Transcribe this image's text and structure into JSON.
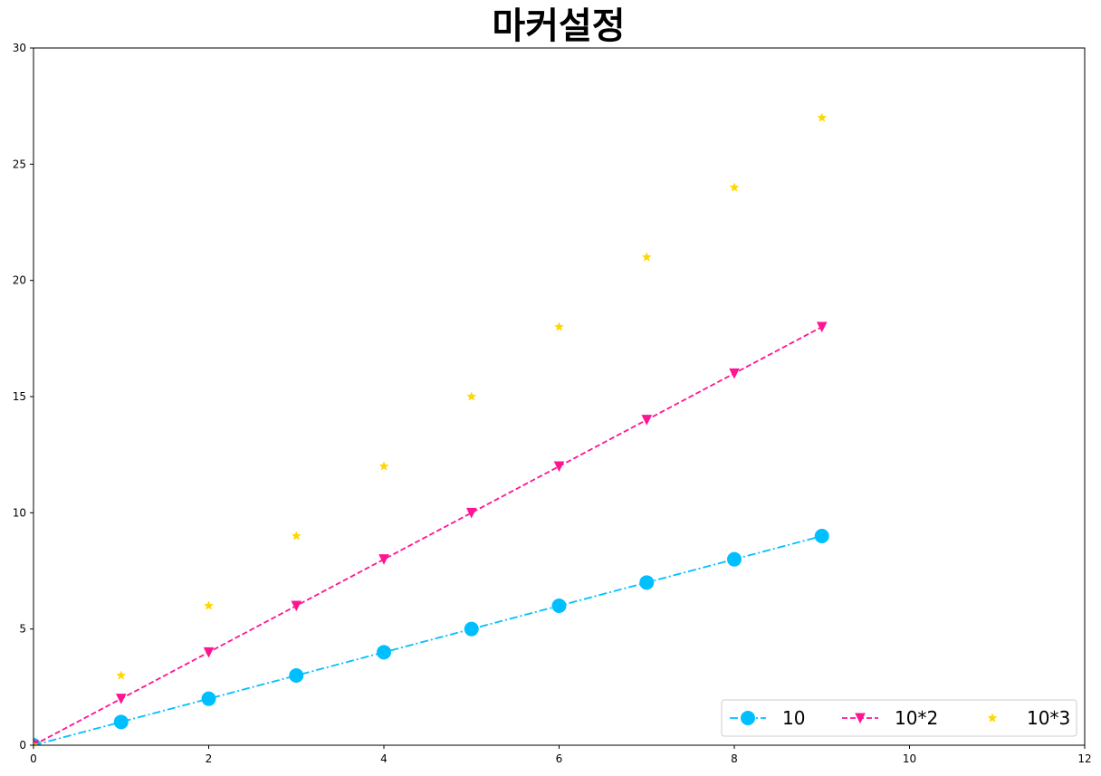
{
  "chart_data": {
    "type": "line",
    "title": "마커설정",
    "xlabel": "",
    "ylabel": "",
    "xlim": [
      0,
      12
    ],
    "ylim": [
      0,
      30
    ],
    "x_ticks": [
      0,
      2,
      4,
      6,
      8,
      10,
      12
    ],
    "y_ticks": [
      0,
      5,
      10,
      15,
      20,
      25,
      30
    ],
    "grid": false,
    "legend_position": "lower-right",
    "x": [
      0,
      1,
      2,
      3,
      4,
      5,
      6,
      7,
      8,
      9
    ],
    "series": [
      {
        "name": "10",
        "values": [
          0,
          1,
          2,
          3,
          4,
          5,
          6,
          7,
          8,
          9
        ],
        "color": "#00BFFF",
        "line_style": "dash-dot",
        "marker": "circle"
      },
      {
        "name": "10*2",
        "values": [
          0,
          2,
          4,
          6,
          8,
          10,
          12,
          14,
          16,
          18
        ],
        "color": "#FF1493",
        "line_style": "dashed",
        "marker": "triangle-down"
      },
      {
        "name": "10*3",
        "values": [
          0,
          3,
          6,
          9,
          12,
          15,
          18,
          21,
          24,
          27
        ],
        "color": "#FFD700",
        "line_style": "none",
        "marker": "star"
      }
    ]
  }
}
